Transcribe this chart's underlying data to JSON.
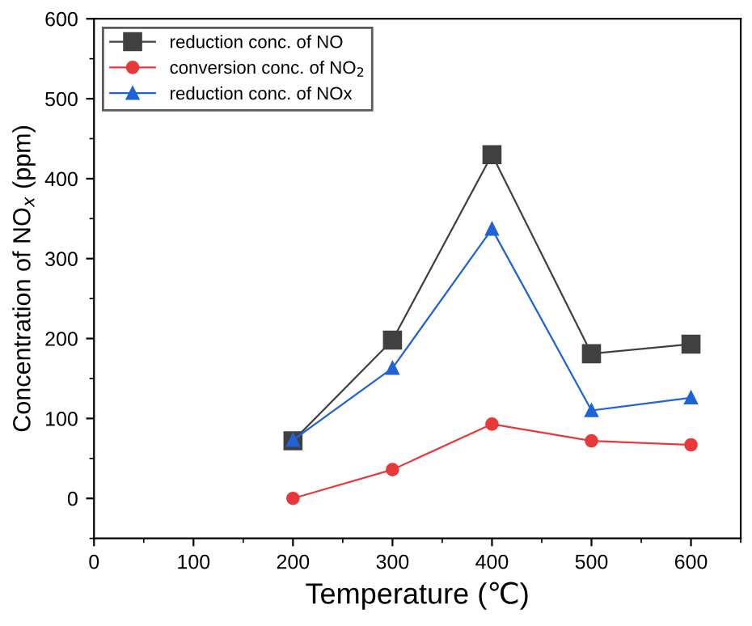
{
  "chart_data": {
    "type": "line",
    "xlabel": "Temperature (℃)",
    "ylabel": "Concentration of NO$_{x}$ (ppm)",
    "x": [
      200,
      300,
      400,
      500,
      600
    ],
    "series": [
      {
        "name": "reduction conc. of NO",
        "color": "#404040",
        "values": [
          72,
          198,
          430,
          181,
          193
        ],
        "marker": "square"
      },
      {
        "name": "conversion conc. of NO$_{2}$",
        "color": "#e8393a",
        "values": [
          0,
          36,
          93,
          72,
          67
        ],
        "marker": "circle"
      },
      {
        "name": "reduction conc. of NOx",
        "color": "#1f63d6",
        "values": [
          73,
          163,
          337,
          110,
          126
        ],
        "marker": "triangle"
      }
    ],
    "xlim": [
      0,
      650
    ],
    "xticks": [
      0,
      100,
      200,
      300,
      400,
      500,
      600
    ],
    "ylim": [
      -50,
      600
    ],
    "yticks": [
      0,
      100,
      200,
      300,
      400,
      500,
      600
    ],
    "grid": false,
    "legend": "top left",
    "line_style": "solid"
  }
}
